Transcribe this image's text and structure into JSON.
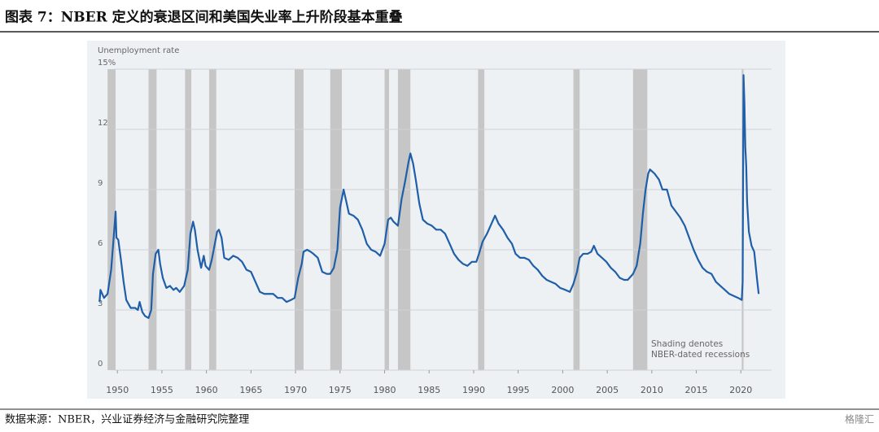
{
  "title": "图表 7：NBER 定义的衰退区间和美国失业率上升阶段基本重叠",
  "source": "数据来源：NBER，兴业证券经济与金融研究院整理",
  "watermark": "格隆汇",
  "chart_data": {
    "type": "line",
    "y_label": "Unemployment rate",
    "annotation": [
      "Shading denotes",
      "NBER-dated recessions"
    ],
    "color": "#1f5ea8",
    "grid": true,
    "xlim": [
      1946.6,
      2025.0
    ],
    "ylim": [
      0,
      15
    ],
    "xticks": [
      1950,
      1955,
      1960,
      1965,
      1970,
      1975,
      1980,
      1985,
      1990,
      1995,
      2000,
      2005,
      2010,
      2015,
      2020
    ],
    "yticks": [
      0,
      3,
      6,
      9,
      12,
      {
        "value": 15,
        "label": "15%"
      }
    ],
    "recessions": [
      [
        1948.9,
        1949.8
      ],
      [
        1953.5,
        1954.4
      ],
      [
        1957.6,
        1958.3
      ],
      [
        1960.3,
        1961.1
      ],
      [
        1969.9,
        1970.9
      ],
      [
        1973.9,
        1975.2
      ],
      [
        1980.0,
        1980.5
      ],
      [
        1981.5,
        1982.9
      ],
      [
        1990.5,
        1991.2
      ],
      [
        2001.2,
        2001.9
      ],
      [
        2007.9,
        2009.5
      ],
      [
        2020.1,
        2020.3
      ]
    ],
    "x": [
      1948.0,
      1948.1,
      1948.5,
      1948.9,
      1949.3,
      1949.6,
      1949.8,
      1949.9,
      1950.1,
      1950.4,
      1950.7,
      1951.0,
      1951.5,
      1952.0,
      1952.3,
      1952.5,
      1952.8,
      1953.1,
      1953.5,
      1953.8,
      1954.0,
      1954.3,
      1954.6,
      1954.8,
      1955.1,
      1955.5,
      1955.9,
      1956.3,
      1956.6,
      1957.0,
      1957.5,
      1957.9,
      1958.2,
      1958.5,
      1958.7,
      1959.0,
      1959.4,
      1959.7,
      1959.9,
      1960.3,
      1960.6,
      1960.9,
      1961.2,
      1961.4,
      1961.7,
      1962.0,
      1962.5,
      1963.0,
      1963.5,
      1964.0,
      1964.5,
      1965.0,
      1965.5,
      1966.0,
      1966.5,
      1967.0,
      1967.5,
      1968.0,
      1968.5,
      1969.0,
      1969.5,
      1969.9,
      1970.3,
      1970.7,
      1970.9,
      1971.3,
      1971.7,
      1972.0,
      1972.5,
      1973.0,
      1973.5,
      1973.9,
      1974.3,
      1974.7,
      1975.0,
      1975.4,
      1975.7,
      1976.0,
      1976.5,
      1977.0,
      1977.5,
      1978.0,
      1978.5,
      1979.0,
      1979.5,
      1980.0,
      1980.4,
      1980.7,
      1981.0,
      1981.5,
      1981.9,
      1982.3,
      1982.7,
      1982.9,
      1983.2,
      1983.5,
      1983.9,
      1984.3,
      1984.8,
      1985.3,
      1985.8,
      1986.3,
      1986.8,
      1987.3,
      1987.8,
      1988.3,
      1988.8,
      1989.3,
      1989.8,
      1990.3,
      1990.6,
      1991.0,
      1991.5,
      1992.0,
      1992.4,
      1992.8,
      1993.3,
      1993.8,
      1994.3,
      1994.7,
      1995.2,
      1995.7,
      1996.2,
      1996.7,
      1997.2,
      1997.7,
      1998.2,
      1998.7,
      1999.2,
      1999.7,
      2000.3,
      2000.8,
      2001.2,
      2001.6,
      2001.9,
      2002.3,
      2002.8,
      2003.2,
      2003.5,
      2003.9,
      2004.4,
      2004.9,
      2005.4,
      2005.9,
      2006.4,
      2006.9,
      2007.3,
      2007.9,
      2008.3,
      2008.7,
      2009.0,
      2009.3,
      2009.6,
      2009.8,
      2010.3,
      2010.8,
      2011.2,
      2011.7,
      2012.2,
      2012.7,
      2013.2,
      2013.7,
      2014.2,
      2014.7,
      2015.2,
      2015.7,
      2016.2,
      2016.7,
      2017.2,
      2017.7,
      2018.2,
      2018.7,
      2019.2,
      2019.7,
      2020.1,
      2020.2,
      2020.3,
      2020.4,
      2020.5,
      2020.6,
      2020.7,
      2020.9,
      2021.2,
      2021.5,
      2021.8,
      2021.9,
      2022.0
    ],
    "values": [
      3.4,
      4.0,
      3.6,
      3.8,
      5.0,
      6.7,
      7.9,
      6.6,
      6.5,
      5.5,
      4.4,
      3.5,
      3.1,
      3.1,
      3.0,
      3.4,
      2.9,
      2.7,
      2.6,
      3.0,
      4.8,
      5.8,
      6.0,
      5.3,
      4.6,
      4.1,
      4.2,
      4.0,
      4.1,
      3.9,
      4.2,
      5.0,
      6.8,
      7.4,
      7.0,
      6.0,
      5.1,
      5.7,
      5.2,
      5.0,
      5.5,
      6.2,
      6.9,
      7.0,
      6.6,
      5.6,
      5.5,
      5.7,
      5.6,
      5.4,
      5.0,
      4.9,
      4.4,
      3.9,
      3.8,
      3.8,
      3.8,
      3.6,
      3.6,
      3.4,
      3.5,
      3.6,
      4.6,
      5.3,
      5.9,
      6.0,
      5.9,
      5.8,
      5.6,
      4.9,
      4.8,
      4.8,
      5.1,
      6.0,
      8.1,
      9.0,
      8.4,
      7.8,
      7.7,
      7.5,
      7.0,
      6.3,
      6.0,
      5.9,
      5.7,
      6.3,
      7.5,
      7.6,
      7.4,
      7.2,
      8.5,
      9.4,
      10.4,
      10.8,
      10.3,
      9.5,
      8.3,
      7.5,
      7.3,
      7.2,
      7.0,
      7.0,
      6.8,
      6.3,
      5.8,
      5.5,
      5.3,
      5.2,
      5.4,
      5.4,
      5.8,
      6.4,
      6.8,
      7.3,
      7.7,
      7.3,
      7.0,
      6.6,
      6.3,
      5.8,
      5.6,
      5.6,
      5.5,
      5.2,
      5.0,
      4.7,
      4.5,
      4.4,
      4.3,
      4.1,
      4.0,
      3.9,
      4.3,
      4.9,
      5.6,
      5.8,
      5.8,
      5.9,
      6.2,
      5.8,
      5.6,
      5.4,
      5.1,
      4.9,
      4.6,
      4.5,
      4.5,
      4.8,
      5.2,
      6.3,
      7.8,
      9.0,
      9.8,
      10.0,
      9.8,
      9.5,
      9.0,
      9.0,
      8.2,
      7.9,
      7.6,
      7.2,
      6.6,
      6.0,
      5.5,
      5.1,
      4.9,
      4.8,
      4.4,
      4.2,
      4.0,
      3.8,
      3.7,
      3.6,
      3.5,
      4.4,
      14.7,
      13.3,
      11.1,
      10.2,
      8.4,
      6.9,
      6.2,
      5.9,
      4.6,
      4.2,
      3.8
    ]
  }
}
